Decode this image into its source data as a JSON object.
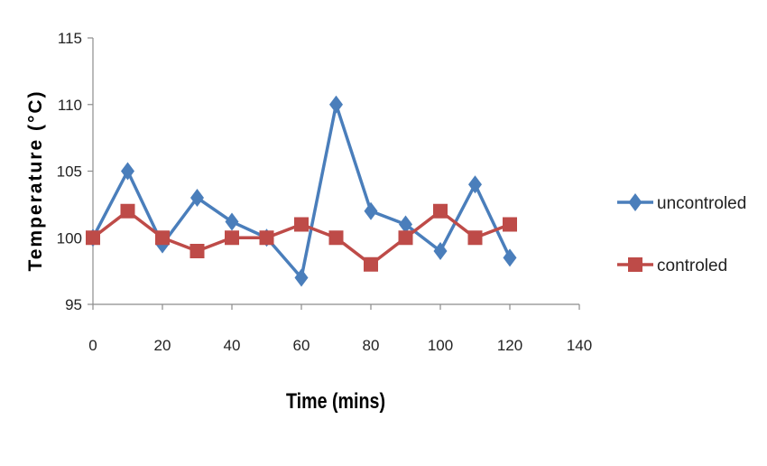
{
  "chart_data": {
    "type": "line",
    "xlabel": "Time (mins)",
    "ylabel": "Temperature (°C)",
    "xlim": [
      0,
      140
    ],
    "ylim": [
      95,
      115
    ],
    "x_ticks": [
      "0",
      "20",
      "40",
      "60",
      "80",
      "100",
      "120",
      "140"
    ],
    "y_ticks": [
      "95",
      "100",
      "105",
      "110",
      "115"
    ],
    "grid": false,
    "legend_position": "right",
    "x": [
      0,
      10,
      20,
      30,
      40,
      50,
      60,
      70,
      80,
      90,
      100,
      110,
      120
    ],
    "series": [
      {
        "name": "uncontroled",
        "color": "#4a7ebb",
        "marker": "diamond",
        "values": [
          100,
          105,
          99.5,
          103,
          101.2,
          100,
          97,
          110,
          102,
          101,
          99,
          104,
          98.5
        ]
      },
      {
        "name": "controled",
        "color": "#be4b48",
        "marker": "square",
        "values": [
          100,
          102,
          100,
          99,
          100,
          100,
          101,
          100,
          98,
          100,
          102,
          100,
          101
        ]
      }
    ]
  }
}
